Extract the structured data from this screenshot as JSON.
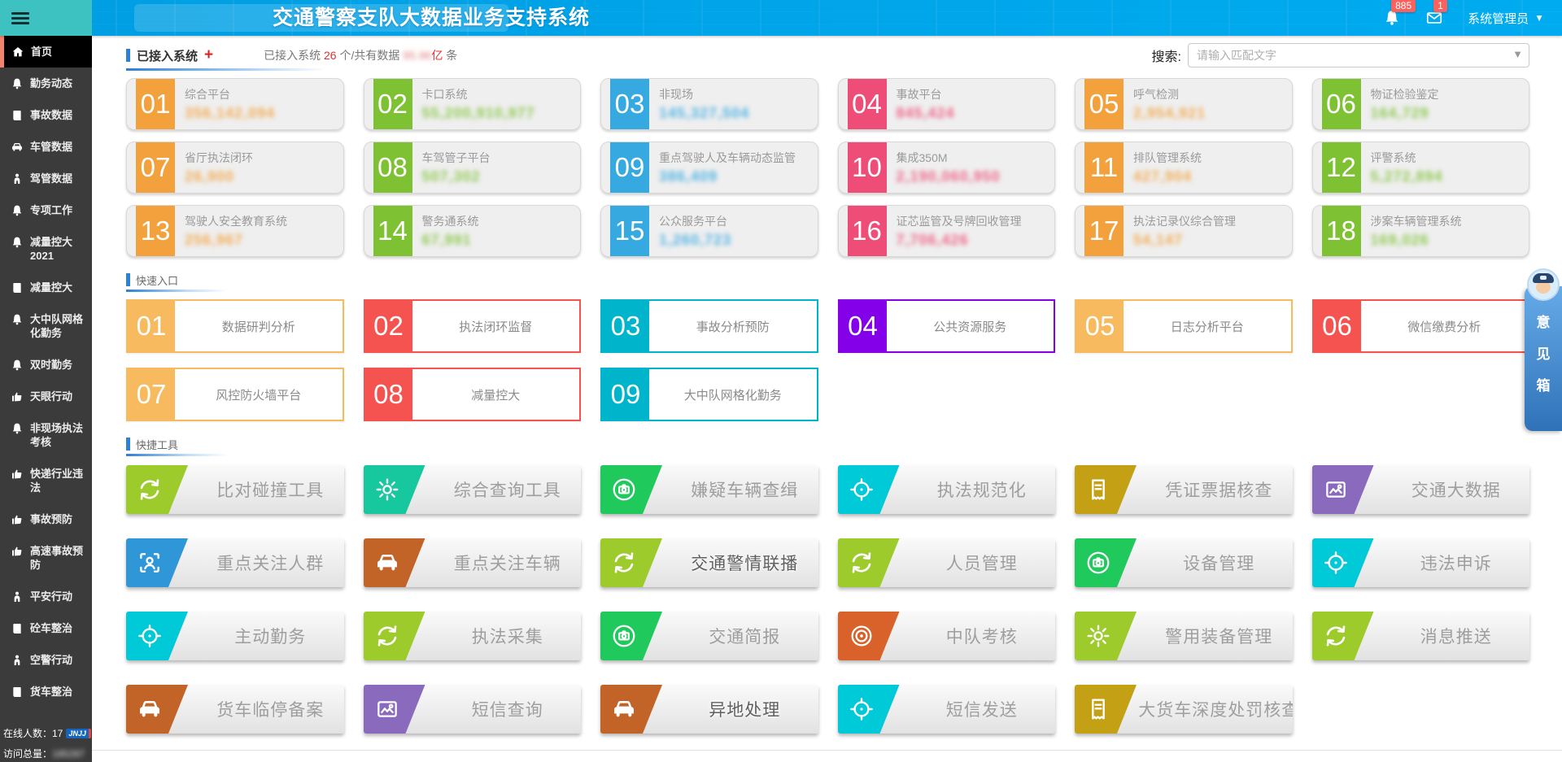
{
  "topbar": {
    "title": "交通警察支队大数据业务支持系统",
    "bell_badge": "885",
    "mail_badge": "1",
    "user": "系统管理员"
  },
  "search": {
    "label": "搜索:",
    "placeholder": "请输入匹配文字"
  },
  "tabs": {
    "active_label": "已接入系统",
    "plus": "+",
    "stats_prefix": "已接入系统 ",
    "stats_count": "26",
    "stats_mid": " 个/共有数据 ",
    "stats_value": "95.96",
    "stats_unit": "亿",
    "stats_suffix": " 条"
  },
  "sections": {
    "quick": "快速入口",
    "tools": "快捷工具"
  },
  "palette": {
    "orange": "#F2A13C",
    "green": "#7EC234",
    "blue": "#36A9E1",
    "pink": "#EE4D77",
    "q_orange": "#F7BA5E",
    "q_red": "#F4534F",
    "q_cyan": "#00B5CB",
    "q_purple": "#8400E8"
  },
  "systems": {
    "cards": [
      {
        "num": "01",
        "label": "综合平台",
        "value": "356,142,094",
        "color": "#F2A13C"
      },
      {
        "num": "02",
        "label": "卡口系统",
        "value": "55,200,910,977",
        "color": "#7EC234"
      },
      {
        "num": "03",
        "label": "非现场",
        "value": "145,327,504",
        "color": "#36A9E1"
      },
      {
        "num": "04",
        "label": "事故平台",
        "value": "845,424",
        "color": "#EE4D77"
      },
      {
        "num": "05",
        "label": "呼气检测",
        "value": "2,954,921",
        "color": "#F2A13C"
      },
      {
        "num": "06",
        "label": "物证检验鉴定",
        "value": "164,729",
        "color": "#7EC234"
      },
      {
        "num": "07",
        "label": "省厅执法闭环",
        "value": "26,900",
        "color": "#F2A13C"
      },
      {
        "num": "08",
        "label": "车驾管子平台",
        "value": "507,302",
        "color": "#7EC234"
      },
      {
        "num": "09",
        "label": "重点驾驶人及车辆动态监管",
        "value": "386,409",
        "color": "#36A9E1"
      },
      {
        "num": "10",
        "label": "集成350M",
        "value": "2,190,060,950",
        "color": "#EE4D77"
      },
      {
        "num": "11",
        "label": "排队管理系统",
        "value": "427,904",
        "color": "#F2A13C"
      },
      {
        "num": "12",
        "label": "评警系统",
        "value": "5,272,894",
        "color": "#7EC234"
      },
      {
        "num": "13",
        "label": "驾驶人安全教育系统",
        "value": "256,967",
        "color": "#F2A13C"
      },
      {
        "num": "14",
        "label": "警务通系统",
        "value": "67,991",
        "color": "#7EC234"
      },
      {
        "num": "15",
        "label": "公众服务平台",
        "value": "1,260,723",
        "color": "#36A9E1"
      },
      {
        "num": "16",
        "label": "证芯监管及号牌回收管理",
        "value": "7,706,426",
        "color": "#EE4D77"
      },
      {
        "num": "17",
        "label": "执法记录仪综合管理",
        "value": "54,147",
        "color": "#F2A13C"
      },
      {
        "num": "18",
        "label": "涉案车辆管理系统",
        "value": "169,026",
        "color": "#7EC234"
      }
    ]
  },
  "quick": {
    "items": [
      {
        "num": "01",
        "label": "数据研判分析",
        "color": "#F7BA5E"
      },
      {
        "num": "02",
        "label": "执法闭环监督",
        "color": "#F4534F"
      },
      {
        "num": "03",
        "label": "事故分析预防",
        "color": "#00B5CB"
      },
      {
        "num": "04",
        "label": "公共资源服务",
        "color": "#8400E8"
      },
      {
        "num": "05",
        "label": "日志分析平台",
        "color": "#F7BA5E"
      },
      {
        "num": "06",
        "label": "微信缴费分析",
        "color": "#F4534F"
      },
      {
        "num": "07",
        "label": "风控防火墙平台",
        "color": "#F7BA5E"
      },
      {
        "num": "08",
        "label": "减量控大",
        "color": "#F4534F"
      },
      {
        "num": "09",
        "label": "大中队网格化勤务",
        "color": "#00B5CB"
      }
    ]
  },
  "tools": {
    "items": [
      {
        "label": "比对碰撞工具",
        "color": "#9CCB2B",
        "icon": "recycle-icon"
      },
      {
        "label": "综合查询工具",
        "color": "#17C79E",
        "icon": "gear-icon"
      },
      {
        "label": "嫌疑车辆查缉",
        "color": "#1FC95B",
        "icon": "camera-icon"
      },
      {
        "label": "执法规范化",
        "color": "#00C9D8",
        "icon": "target-icon"
      },
      {
        "label": "凭证票据核查",
        "color": "#C4A114",
        "icon": "receipt-icon"
      },
      {
        "label": "交通大数据",
        "color": "#8A6ABD",
        "icon": "map-icon"
      },
      {
        "label": "重点关注人群",
        "color": "#2F96D8",
        "icon": "person-frame-icon"
      },
      {
        "label": "重点关注车辆",
        "color": "#C26428",
        "icon": "car-icon"
      },
      {
        "label": "交通警情联播",
        "color": "#9CCB2B",
        "icon": "recycle-icon",
        "emphasis": true
      },
      {
        "label": "人员管理",
        "color": "#9CCB2B",
        "icon": "recycle-icon"
      },
      {
        "label": "设备管理",
        "color": "#1FC95B",
        "icon": "camera-icon"
      },
      {
        "label": "违法申诉",
        "color": "#00C9D8",
        "icon": "target-icon"
      },
      {
        "label": "主动勤务",
        "color": "#00C9D8",
        "icon": "target-icon"
      },
      {
        "label": "执法采集",
        "color": "#9CCB2B",
        "icon": "recycle-icon"
      },
      {
        "label": "交通简报",
        "color": "#1FC95B",
        "icon": "camera-icon"
      },
      {
        "label": "中队考核",
        "color": "#D9622B",
        "icon": "bullseye-icon"
      },
      {
        "label": "警用装备管理",
        "color": "#9CCB2B",
        "icon": "gear-icon"
      },
      {
        "label": "消息推送",
        "color": "#9CCB2B",
        "icon": "recycle-icon"
      },
      {
        "label": "货车临停备案",
        "color": "#C26428",
        "icon": "car-icon"
      },
      {
        "label": "短信查询",
        "color": "#8A6ABD",
        "icon": "map-icon"
      },
      {
        "label": "异地处理",
        "color": "#C26428",
        "icon": "car-icon",
        "emphasis": true
      },
      {
        "label": "短信发送",
        "color": "#00C9D8",
        "icon": "target-icon"
      },
      {
        "label": "大货车深度处罚核查",
        "color": "#C4A114",
        "icon": "receipt-icon"
      }
    ]
  },
  "sidebar": {
    "items": [
      {
        "label": "首页",
        "icon": "home-icon",
        "active": true
      },
      {
        "label": "勤务动态",
        "icon": "bell-icon"
      },
      {
        "label": "事故数据",
        "icon": "book-icon"
      },
      {
        "label": "车管数据",
        "icon": "car-icon"
      },
      {
        "label": "驾管数据",
        "icon": "person-icon"
      },
      {
        "label": "专项工作",
        "icon": "bell-icon"
      },
      {
        "label": "减量控大2021",
        "icon": "bell-icon"
      },
      {
        "label": "减量控大",
        "icon": "book-icon"
      },
      {
        "label": "大中队网格化勤务",
        "icon": "bell-icon"
      },
      {
        "label": "双时勤务",
        "icon": "bell-icon"
      },
      {
        "label": "天眼行动",
        "icon": "thumb-icon"
      },
      {
        "label": "非现场执法考核",
        "icon": "bell-icon"
      },
      {
        "label": "快递行业违法",
        "icon": "thumb-icon"
      },
      {
        "label": "事故预防",
        "icon": "thumb-icon"
      },
      {
        "label": "高速事故预防",
        "icon": "thumb-icon"
      },
      {
        "label": "平安行动",
        "icon": "person-icon"
      },
      {
        "label": "砼车整治",
        "icon": "book-icon"
      },
      {
        "label": "空警行动",
        "icon": "person-icon"
      },
      {
        "label": "货车整治",
        "icon": "book-icon"
      }
    ],
    "footer": {
      "online": "在线人数：17",
      "logo": "JNJJ",
      "visits_prefix": "访问总量：",
      "visits_value": "185287"
    }
  },
  "feedback": {
    "chars": [
      "意",
      "见",
      "箱"
    ]
  }
}
